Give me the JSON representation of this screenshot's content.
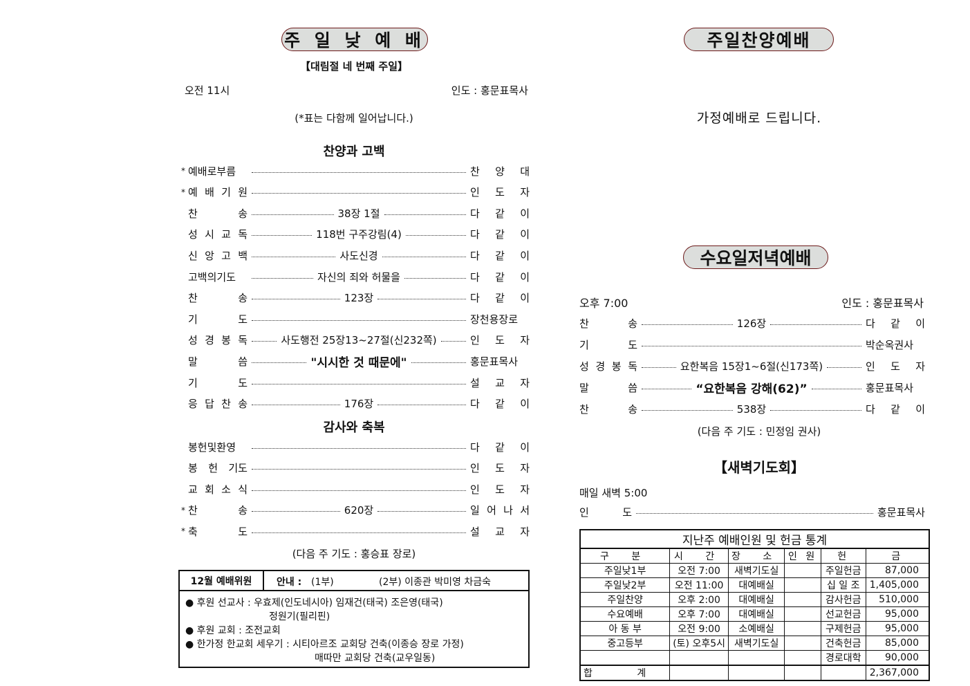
{
  "left": {
    "title": "주 일 낮 예 배",
    "subtitle": "【대림절 네 번째 주일】",
    "time": "오전 11시",
    "leader": "인도 : 홍문표목사",
    "note": "(*표는 다함께 일어납니다.)",
    "section1": "찬양과 고백",
    "section2": "감사와 축복",
    "items1": [
      {
        "star": "*",
        "label": "예배로부름",
        "mid": "",
        "right": "찬 양 대"
      },
      {
        "star": "*",
        "label": "예 배 기 원",
        "mid": "",
        "right": "인 도 자"
      },
      {
        "star": "",
        "label": "찬 송",
        "mid": "38장 1절",
        "right": "다 같 이"
      },
      {
        "star": "",
        "label": "성 시 교 독",
        "mid": "118번 구주강림(4)",
        "right": "다 같 이"
      },
      {
        "star": "",
        "label": "신 앙 고 백",
        "mid": "사도신경",
        "right": "다 같 이"
      },
      {
        "star": "",
        "label": "고백의기도",
        "mid": "자신의 죄와 허물을",
        "right": "다 같 이"
      },
      {
        "star": "",
        "label": "찬 송",
        "mid": "123장",
        "right": "다 같 이"
      },
      {
        "star": "",
        "label": "기 도",
        "mid": "",
        "right": "장천용장로"
      },
      {
        "star": "",
        "label": "성 경 봉 독",
        "mid": "사도행전 25장13~27절(신232쪽)",
        "right": "인 도 자"
      },
      {
        "star": "",
        "label": "말 씀",
        "mid": "\"시시한 것 때문에\"",
        "right": "홍문표목사",
        "bold": true
      },
      {
        "star": "",
        "label": "기 도",
        "mid": "",
        "right": "설 교 자"
      },
      {
        "star": "",
        "label": "응 답 찬 송",
        "mid": "176장",
        "right": "다 같 이"
      }
    ],
    "items2": [
      {
        "star": "",
        "label": "봉헌및환영",
        "mid": "",
        "right": "다 같 이"
      },
      {
        "star": "",
        "label": "봉 헌 기도",
        "mid": "",
        "right": "인 도 자"
      },
      {
        "star": "",
        "label": "교 회 소 식",
        "mid": "",
        "right": "인 도 자"
      },
      {
        "star": "*",
        "label": "찬 송",
        "mid": "620장",
        "right": "일 어 나 서"
      },
      {
        "star": "*",
        "label": "축 도",
        "mid": "",
        "right": "설 교 자"
      }
    ],
    "next_prayer": "(다음 주 기도 : 홍승표 장로)",
    "notice": {
      "month_label": "12월 예배위원",
      "guide_label": "안내 :",
      "guide_1": "(1부)",
      "guide_2": "(2부) 이종관 박미영 차금숙",
      "bullets": [
        {
          "text": "후원 선교사 : 우효제(인도네시아)  임재건(태국)  조은영(태국)",
          "cont": "정원기(필리핀)"
        },
        {
          "text": "후원 교회    : 조전교회",
          "cont": ""
        },
        {
          "text": "한가정 한교회 세우기 : 시티아르조 교회당 건축(이종승 장로 가정)",
          "cont": "매따만 교회당 건축(교우일동)"
        }
      ]
    }
  },
  "right": {
    "praise_title": "주일찬양예배",
    "praise_note": "가정예배로 드립니다.",
    "wed_title": "수요일저녁예배",
    "wed_time": "오후 7:00",
    "wed_leader": "인도 : 홍문표목사",
    "wed_items": [
      {
        "star": "",
        "label": "찬 송",
        "mid": "126장",
        "right": "다 같 이"
      },
      {
        "star": "",
        "label": "기 도",
        "mid": "",
        "right": "박순옥권사"
      },
      {
        "star": "",
        "label": "성 경 봉 독",
        "mid": "요한복음 15장1~6절(신173쪽)",
        "right": "인 도 자"
      },
      {
        "star": "",
        "label": "말 씀",
        "mid": "“요한복음 강해(62)”",
        "right": "홍문표목사",
        "bold": true
      },
      {
        "star": "",
        "label": "찬 송",
        "mid": "538장",
        "right": "다 같 이"
      }
    ],
    "wed_next": "(다음 주 기도 : 민정임 권사)",
    "dawn_title": "【새벽기도회】",
    "dawn_time": "매일 새벽 5:00",
    "dawn_label": "인 도",
    "dawn_leader": "홍문표목사",
    "stats": {
      "title": "지난주 예배인원 및 헌금 통계",
      "headers": [
        "구 분",
        "시 간",
        "장 소",
        "인 원",
        "헌",
        "금"
      ],
      "rows": [
        [
          "주일낮1부",
          "오전 7:00",
          "새벽기도실",
          "",
          "주일헌금",
          "87,000"
        ],
        [
          "주일낮2부",
          "오전 11:00",
          "대예배실",
          "",
          "십 일 조",
          "1,405,000"
        ],
        [
          "주일찬양",
          "오후 2:00",
          "대예배실",
          "",
          "감사헌금",
          "510,000"
        ],
        [
          "수요예배",
          "오후 7:00",
          "대예배실",
          "",
          "선교헌금",
          "95,000"
        ],
        [
          "아 동 부",
          "오전 9:00",
          "소예배실",
          "",
          "구제헌금",
          "95,000"
        ],
        [
          "중고등부",
          "(토) 오후5시",
          "새벽기도실",
          "",
          "건축헌금",
          "85,000"
        ],
        [
          "",
          "",
          "",
          "",
          "경로대학",
          "90,000"
        ]
      ],
      "total_label": "합 계",
      "total_value": "2,367,000"
    }
  }
}
